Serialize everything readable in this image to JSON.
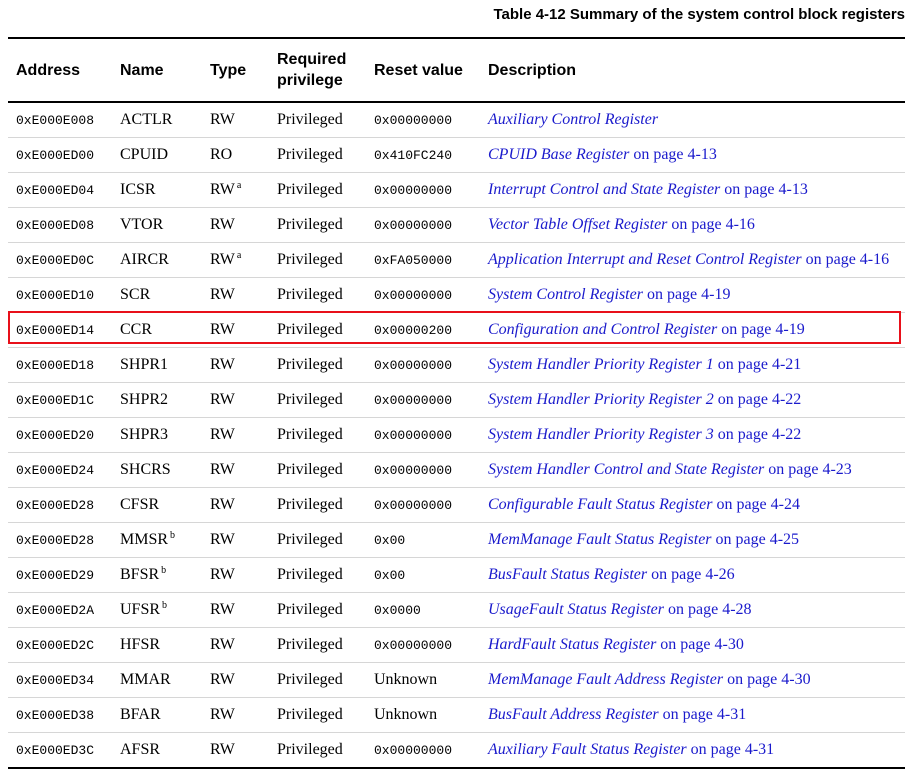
{
  "caption": "Table 4-12 Summary of the system control block registers",
  "headers": {
    "address": "Address",
    "name": "Name",
    "type": "Type",
    "privilege_line1": "Required",
    "privilege_line2": "privilege",
    "reset": "Reset value",
    "description": "Description"
  },
  "highlight": {
    "row_name": "CCR",
    "color": "#e8101a"
  },
  "link_color": "#1a1acc",
  "rows": [
    {
      "address": "0xE000E008",
      "name": "ACTLR",
      "name_fn": "",
      "type": "RW",
      "type_fn": "",
      "privilege": "Privileged",
      "reset": "0x00000000",
      "desc_link": "Auxiliary Control Register",
      "desc_suffix": ""
    },
    {
      "address": "0xE000ED00",
      "name": "CPUID",
      "name_fn": "",
      "type": "RO",
      "type_fn": "",
      "privilege": "Privileged",
      "reset": "0x410FC240",
      "desc_link": "CPUID Base Register",
      "desc_suffix": "on page 4-13"
    },
    {
      "address": "0xE000ED04",
      "name": "ICSR",
      "name_fn": "",
      "type": "RW",
      "type_fn": "a",
      "privilege": "Privileged",
      "reset": "0x00000000",
      "desc_link": "Interrupt Control and State Register",
      "desc_suffix": "on page 4-13"
    },
    {
      "address": "0xE000ED08",
      "name": "VTOR",
      "name_fn": "",
      "type": "RW",
      "type_fn": "",
      "privilege": "Privileged",
      "reset": "0x00000000",
      "desc_link": "Vector Table Offset Register",
      "desc_suffix": "on page 4-16"
    },
    {
      "address": "0xE000ED0C",
      "name": "AIRCR",
      "name_fn": "",
      "type": "RW",
      "type_fn": "a",
      "privilege": "Privileged",
      "reset": "0xFA050000",
      "desc_link": "Application Interrupt and Reset Control Register",
      "desc_suffix": "on page 4-16"
    },
    {
      "address": "0xE000ED10",
      "name": "SCR",
      "name_fn": "",
      "type": "RW",
      "type_fn": "",
      "privilege": "Privileged",
      "reset": "0x00000000",
      "desc_link": "System Control Register",
      "desc_suffix": "on page 4-19"
    },
    {
      "address": "0xE000ED14",
      "name": "CCR",
      "name_fn": "",
      "type": "RW",
      "type_fn": "",
      "privilege": "Privileged",
      "reset": "0x00000200",
      "desc_link": "Configuration and Control Register",
      "desc_suffix": "on page 4-19"
    },
    {
      "address": "0xE000ED18",
      "name": "SHPR1",
      "name_fn": "",
      "type": "RW",
      "type_fn": "",
      "privilege": "Privileged",
      "reset": "0x00000000",
      "desc_link": "System Handler Priority Register 1",
      "desc_suffix": "on page 4-21"
    },
    {
      "address": "0xE000ED1C",
      "name": "SHPR2",
      "name_fn": "",
      "type": "RW",
      "type_fn": "",
      "privilege": "Privileged",
      "reset": "0x00000000",
      "desc_link": "System Handler Priority Register 2",
      "desc_suffix": "on page 4-22"
    },
    {
      "address": "0xE000ED20",
      "name": "SHPR3",
      "name_fn": "",
      "type": "RW",
      "type_fn": "",
      "privilege": "Privileged",
      "reset": "0x00000000",
      "desc_link": "System Handler Priority Register 3",
      "desc_suffix": "on page 4-22"
    },
    {
      "address": "0xE000ED24",
      "name": "SHCRS",
      "name_fn": "",
      "type": "RW",
      "type_fn": "",
      "privilege": "Privileged",
      "reset": "0x00000000",
      "desc_link": "System Handler Control and State Register",
      "desc_suffix": "on page 4-23"
    },
    {
      "address": "0xE000ED28",
      "name": "CFSR",
      "name_fn": "",
      "type": "RW",
      "type_fn": "",
      "privilege": "Privileged",
      "reset": "0x00000000",
      "desc_link": "Configurable Fault Status Register",
      "desc_suffix": "on page 4-24"
    },
    {
      "address": "0xE000ED28",
      "name": "MMSR",
      "name_fn": "b",
      "type": "RW",
      "type_fn": "",
      "privilege": "Privileged",
      "reset": "0x00",
      "desc_link": "MemManage Fault Status Register",
      "desc_suffix": "on page 4-25"
    },
    {
      "address": "0xE000ED29",
      "name": "BFSR",
      "name_fn": "b",
      "type": "RW",
      "type_fn": "",
      "privilege": "Privileged",
      "reset": "0x00",
      "desc_link": "BusFault Status Register",
      "desc_suffix": "on page 4-26"
    },
    {
      "address": "0xE000ED2A",
      "name": "UFSR",
      "name_fn": "b",
      "type": "RW",
      "type_fn": "",
      "privilege": "Privileged",
      "reset": "0x0000",
      "desc_link": "UsageFault Status Register",
      "desc_suffix": "on page 4-28"
    },
    {
      "address": "0xE000ED2C",
      "name": "HFSR",
      "name_fn": "",
      "type": "RW",
      "type_fn": "",
      "privilege": "Privileged",
      "reset": "0x00000000",
      "desc_link": "HardFault Status Register",
      "desc_suffix": "on page 4-30"
    },
    {
      "address": "0xE000ED34",
      "name": "MMAR",
      "name_fn": "",
      "type": "RW",
      "type_fn": "",
      "privilege": "Privileged",
      "reset": "Unknown",
      "desc_link": "MemManage Fault Address Register",
      "desc_suffix": "on page 4-30"
    },
    {
      "address": "0xE000ED38",
      "name": "BFAR",
      "name_fn": "",
      "type": "RW",
      "type_fn": "",
      "privilege": "Privileged",
      "reset": "Unknown",
      "desc_link": "BusFault Address Register",
      "desc_suffix": "on page 4-31"
    },
    {
      "address": "0xE000ED3C",
      "name": "AFSR",
      "name_fn": "",
      "type": "RW",
      "type_fn": "",
      "privilege": "Privileged",
      "reset": "0x00000000",
      "desc_link": "Auxiliary Fault Status Register",
      "desc_suffix": "on page 4-31"
    }
  ]
}
